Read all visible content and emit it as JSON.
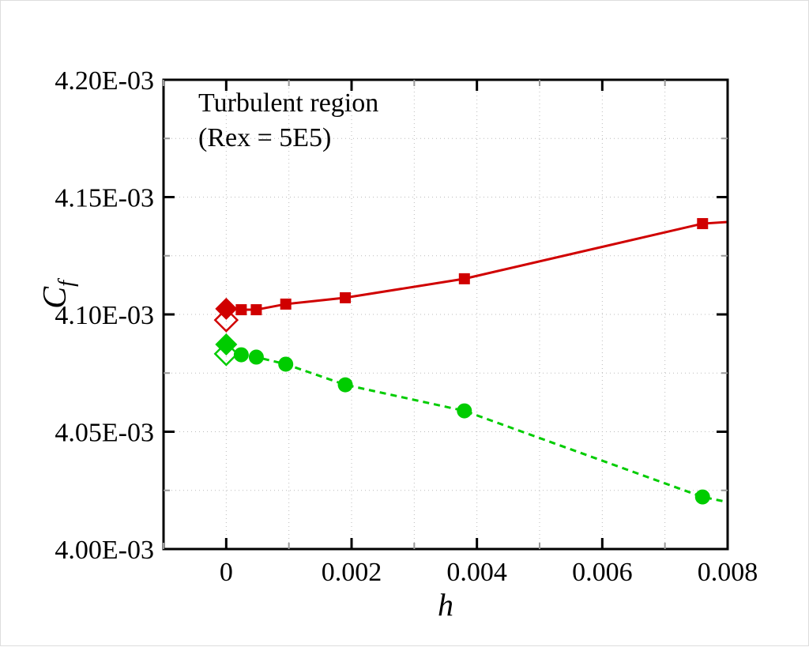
{
  "chart_data": {
    "type": "line",
    "xlabel": "h",
    "ylabel_main": "C",
    "ylabel_sub": "f",
    "xlim": [
      -0.001,
      0.008
    ],
    "ylim": [
      0.004,
      0.0042
    ],
    "xticks": [
      0,
      0.002,
      0.004,
      0.006,
      0.008
    ],
    "xtick_labels": [
      "0",
      "0.002",
      "0.004",
      "0.006",
      "0.008"
    ],
    "yticks": [
      0.004,
      0.00405,
      0.0041,
      0.00415,
      0.0042
    ],
    "ytick_labels": [
      "4.00E-03",
      "4.05E-03",
      "4.10E-03",
      "4.15E-03",
      "4.20E-03"
    ],
    "grid": true,
    "annotation": [
      "Turbulent region",
      "(Rex = 5E5)"
    ],
    "series": [
      {
        "color": "#d00000",
        "marker": "square",
        "line": "solid",
        "x": [
          0.00024,
          0.00048,
          0.00095,
          0.0019,
          0.0038,
          0.0076
        ],
        "y": [
          0.004102,
          0.004102,
          0.0041044,
          0.0041071,
          0.0041152,
          0.0041387
        ],
        "extend_to": [
          0.008,
          0.0041394
        ]
      },
      {
        "color": "#00cc00",
        "marker": "circle",
        "line": "dashed",
        "x": [
          0.00024,
          0.00048,
          0.00095,
          0.0019,
          0.0038,
          0.0076
        ],
        "y": [
          0.0040828,
          0.0040818,
          0.0040788,
          0.00407,
          0.0040589,
          0.0040222
        ],
        "extend_to": [
          0.008,
          0.00402
        ]
      },
      {
        "color": "#d00000",
        "marker": "diamond-filled",
        "line": "none",
        "x": [
          0
        ],
        "y": [
          0.0041024
        ]
      },
      {
        "color": "#d00000",
        "marker": "diamond-open",
        "line": "none",
        "x": [
          0
        ],
        "y": [
          0.0040976
        ]
      },
      {
        "color": "#00cc00",
        "marker": "diamond-filled",
        "line": "none",
        "x": [
          0
        ],
        "y": [
          0.0040872
        ]
      },
      {
        "color": "#00cc00",
        "marker": "diamond-open",
        "line": "none",
        "x": [
          0
        ],
        "y": [
          0.0040832
        ]
      }
    ]
  }
}
